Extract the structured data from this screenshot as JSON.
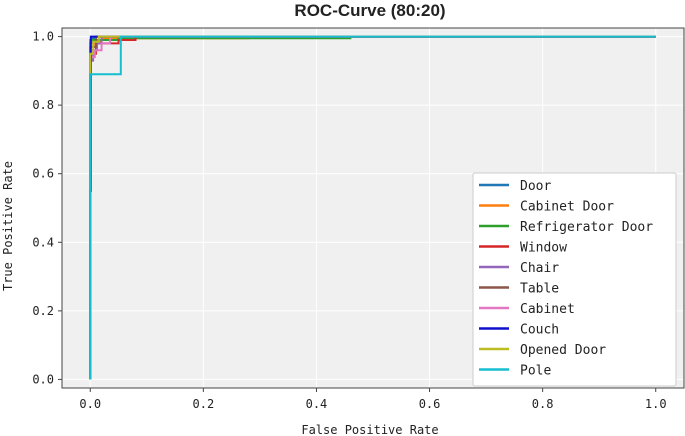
{
  "chart_data": {
    "type": "line",
    "title": "ROC-Curve (80:20)",
    "xlabel": "False Positive Rate",
    "ylabel": "True Positive Rate",
    "xlim": [
      -0.05,
      1.05
    ],
    "ylim": [
      -0.025,
      1.025
    ],
    "xticks": [
      "0.0",
      "0.2",
      "0.4",
      "0.6",
      "0.8",
      "1.0"
    ],
    "yticks": [
      "0.0",
      "0.2",
      "0.4",
      "0.6",
      "0.8",
      "1.0"
    ],
    "legend_position": "lower-right",
    "grid": true,
    "series": [
      {
        "name": "Door",
        "color": "#1f77b4",
        "points": [
          [
            0,
            0
          ],
          [
            0,
            0.98
          ],
          [
            0.003,
            0.98
          ],
          [
            0.003,
            0.995
          ],
          [
            0.01,
            0.995
          ],
          [
            0.01,
            1
          ],
          [
            1,
            1
          ]
        ]
      },
      {
        "name": "Cabinet Door",
        "color": "#ff7f0e",
        "points": [
          [
            0,
            0
          ],
          [
            0,
            0.97
          ],
          [
            0.006,
            0.97
          ],
          [
            0.006,
            0.985
          ],
          [
            0.02,
            0.985
          ],
          [
            0.02,
            0.995
          ],
          [
            0.28,
            0.995
          ],
          [
            0.28,
            1
          ],
          [
            1,
            1
          ]
        ]
      },
      {
        "name": "Refrigerator Door",
        "color": "#2ca02c",
        "points": [
          [
            0,
            0
          ],
          [
            0,
            0.99
          ],
          [
            0.05,
            0.99
          ],
          [
            0.05,
            0.995
          ],
          [
            0.46,
            0.995
          ],
          [
            0.46,
            1
          ],
          [
            1,
            1
          ]
        ]
      },
      {
        "name": "Window",
        "color": "#d62728",
        "points": [
          [
            0,
            0
          ],
          [
            0,
            0.95
          ],
          [
            0.01,
            0.95
          ],
          [
            0.01,
            0.98
          ],
          [
            0.05,
            0.98
          ],
          [
            0.05,
            0.99
          ],
          [
            0.08,
            0.99
          ],
          [
            0.08,
            1
          ],
          [
            1,
            1
          ]
        ]
      },
      {
        "name": "Chair",
        "color": "#9467bd",
        "points": [
          [
            0,
            0
          ],
          [
            0,
            0.93
          ],
          [
            0.005,
            0.93
          ],
          [
            0.005,
            0.96
          ],
          [
            0.012,
            0.96
          ],
          [
            0.012,
            0.98
          ],
          [
            0.02,
            0.98
          ],
          [
            0.02,
            1
          ],
          [
            1,
            1
          ]
        ]
      },
      {
        "name": "Table",
        "color": "#8c564b",
        "points": [
          [
            0,
            0
          ],
          [
            0,
            0.97
          ],
          [
            0.01,
            0.97
          ],
          [
            0.01,
            1
          ],
          [
            1,
            1
          ]
        ]
      },
      {
        "name": "Cabinet",
        "color": "#e377c2",
        "points": [
          [
            0,
            0
          ],
          [
            0,
            0.94
          ],
          [
            0.008,
            0.94
          ],
          [
            0.008,
            0.96
          ],
          [
            0.02,
            0.96
          ],
          [
            0.02,
            0.98
          ],
          [
            0.035,
            0.98
          ],
          [
            0.035,
            1
          ],
          [
            1,
            1
          ]
        ]
      },
      {
        "name": "Couch",
        "color": "#1010cc",
        "points": [
          [
            0,
            0
          ],
          [
            0,
            0.55
          ],
          [
            0.001,
            0.55
          ],
          [
            0.001,
            1
          ],
          [
            0.015,
            1
          ],
          [
            1,
            1
          ]
        ]
      },
      {
        "name": "Opened Door",
        "color": "#bcbd22",
        "points": [
          [
            0,
            0
          ],
          [
            0,
            0.95
          ],
          [
            0.005,
            0.95
          ],
          [
            0.005,
            0.985
          ],
          [
            0.015,
            0.985
          ],
          [
            0.015,
            1
          ],
          [
            1,
            1
          ]
        ]
      },
      {
        "name": "Pole",
        "color": "#17becf",
        "points": [
          [
            0,
            0
          ],
          [
            0,
            0.89
          ],
          [
            0.054,
            0.89
          ],
          [
            0.054,
            1
          ],
          [
            1,
            1
          ]
        ]
      }
    ]
  }
}
